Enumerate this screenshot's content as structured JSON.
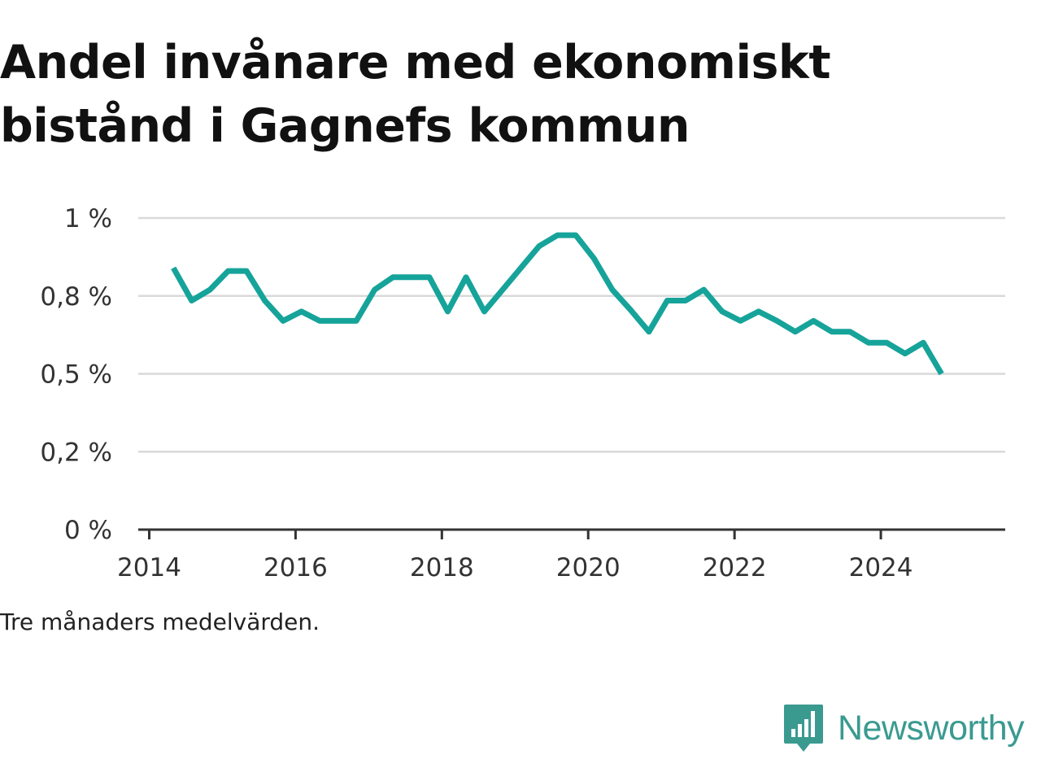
{
  "title": "Andel invånare med ekonomiskt bistånd i Gagnefs kommun",
  "note": "Tre månaders medelvärden.",
  "brand": {
    "name": "Newsworthy",
    "icon": "newsworthy-chart-bubble-icon",
    "color": "#3a9a90"
  },
  "chart_data": {
    "type": "line",
    "title": "Andel invånare med ekonomiskt bistånd i Gagnefs kommun",
    "xlabel": "",
    "ylabel": "",
    "xlim": [
      2013.85,
      2025.7
    ],
    "ylim": [
      0,
      1.0
    ],
    "x_ticks": [
      2014,
      2016,
      2018,
      2020,
      2022,
      2024
    ],
    "x_tick_labels": [
      "2014",
      "2016",
      "2018",
      "2020",
      "2022",
      "2024"
    ],
    "y_ticks": [
      0,
      0.25,
      0.5,
      0.75,
      1.0
    ],
    "y_tick_labels": [
      "0 %",
      "0,2 %",
      "0,5 %",
      "0,8 %",
      "1 %"
    ],
    "grid": true,
    "line_color": "#16a39a",
    "series": [
      {
        "x": [
          2014.33,
          2014.58,
          2014.83,
          2015.08,
          2015.33,
          2015.58,
          2015.83,
          2016.08,
          2016.33,
          2016.58,
          2016.83,
          2017.08,
          2017.33,
          2017.58,
          2017.83,
          2018.08,
          2018.33,
          2018.58,
          2018.83,
          2019.08,
          2019.33,
          2019.58,
          2019.83,
          2020.08,
          2020.33,
          2020.58,
          2020.83,
          2021.08,
          2021.33,
          2021.58,
          2021.83,
          2022.08,
          2022.33,
          2022.58,
          2022.83,
          2023.08,
          2023.33,
          2023.58,
          2023.83,
          2024.08,
          2024.33,
          2024.58,
          2024.83
        ],
        "values": [
          0.84,
          0.735,
          0.77,
          0.83,
          0.83,
          0.735,
          0.67,
          0.7,
          0.67,
          0.67,
          0.67,
          0.77,
          0.81,
          0.81,
          0.81,
          0.7,
          0.81,
          0.7,
          0.77,
          0.84,
          0.91,
          0.945,
          0.945,
          0.87,
          0.77,
          0.705,
          0.635,
          0.735,
          0.735,
          0.77,
          0.7,
          0.67,
          0.7,
          0.67,
          0.635,
          0.67,
          0.635,
          0.635,
          0.6,
          0.6,
          0.565,
          0.6,
          0.5
        ]
      }
    ]
  }
}
